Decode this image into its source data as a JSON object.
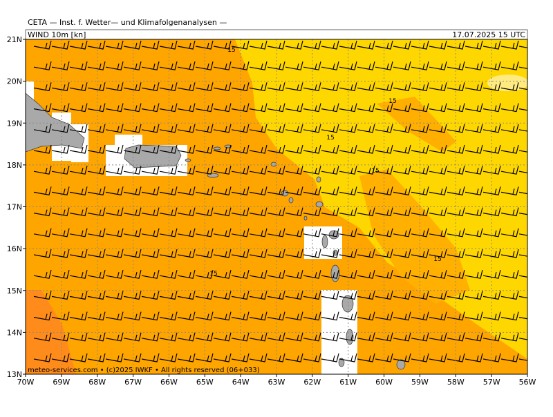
{
  "header": {
    "title": "CETA — Inst. f. Wetter— und Klimafolgenanalysen —",
    "product": "WIND 10m [kn]",
    "valid": "17.07.2025 15 UTC"
  },
  "map": {
    "lat_labels": [
      "21N",
      "20N",
      "19N",
      "18N",
      "17N",
      "16N",
      "15N",
      "14N",
      "13N"
    ],
    "lon_labels": [
      "70W",
      "69W",
      "68W",
      "67W",
      "66W",
      "65W",
      "64W",
      "63W",
      "62W",
      "61W",
      "60W",
      "59W",
      "58W",
      "57W",
      "56W"
    ],
    "contour_labels": [
      "15",
      "15",
      "15",
      "15",
      "15",
      "15"
    ]
  },
  "footer": "meteo-services.com • (c)2025 IWKF • All rights reserved (06+033)"
}
